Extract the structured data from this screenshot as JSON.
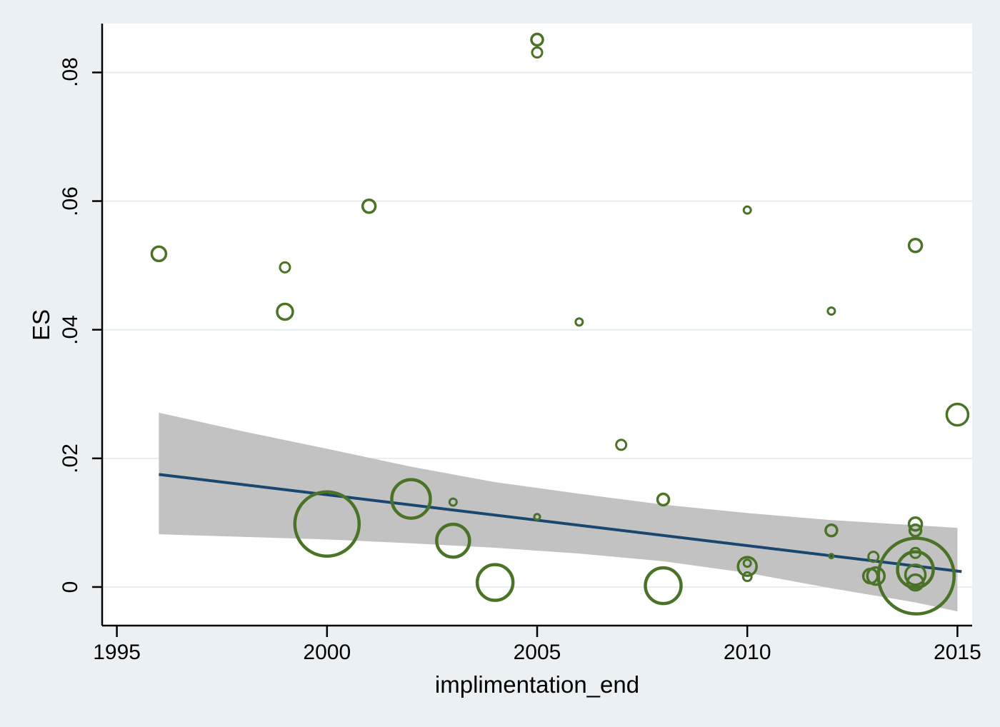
{
  "chart_data": {
    "type": "scatter",
    "subtype": "bubble-with-fit",
    "title": "",
    "xlabel": "implimentation_end",
    "ylabel": "ES",
    "x_range": [
      1994.65,
      2015.35
    ],
    "y_range": [
      -0.006,
      0.0876
    ],
    "x_ticks": [
      1995,
      2000,
      2005,
      2010,
      2015
    ],
    "x_tick_labels": [
      "1995",
      "2000",
      "2005",
      "2010",
      "2015"
    ],
    "y_ticks": [
      0,
      0.02,
      0.04,
      0.06,
      0.08
    ],
    "y_tick_labels": [
      "0",
      ".02",
      ".04",
      ".06",
      ".08"
    ],
    "grid": true,
    "legend": false,
    "bubbles": [
      {
        "x": 1996,
        "y": 0.0518,
        "r": 10
      },
      {
        "x": 1999,
        "y": 0.0497,
        "r": 7
      },
      {
        "x": 1999,
        "y": 0.0428,
        "r": 11
      },
      {
        "x": 2000,
        "y": 0.0098,
        "r": 45
      },
      {
        "x": 2001,
        "y": 0.0592,
        "r": 9
      },
      {
        "x": 2002,
        "y": 0.0137,
        "r": 27
      },
      {
        "x": 2003,
        "y": 0.0132,
        "r": 5
      },
      {
        "x": 2003,
        "y": 0.0072,
        "r": 23
      },
      {
        "x": 2004,
        "y": 0.0007,
        "r": 25
      },
      {
        "x": 2005,
        "y": 0.0851,
        "r": 8
      },
      {
        "x": 2005,
        "y": 0.0831,
        "r": 7
      },
      {
        "x": 2005,
        "y": 0.0109,
        "r": 4
      },
      {
        "x": 2006,
        "y": 0.0412,
        "r": 5
      },
      {
        "x": 2007,
        "y": 0.0221,
        "r": 7
      },
      {
        "x": 2008,
        "y": 0.0136,
        "r": 8
      },
      {
        "x": 2008,
        "y": 0.0002,
        "r": 25
      },
      {
        "x": 2010,
        "y": 0.0586,
        "r": 5
      },
      {
        "x": 2010,
        "y": 0.0037,
        "r": 5
      },
      {
        "x": 2010,
        "y": 0.0032,
        "r": 13
      },
      {
        "x": 2010,
        "y": 0.0016,
        "r": 6
      },
      {
        "x": 2012,
        "y": 0.0429,
        "r": 5
      },
      {
        "x": 2012,
        "y": 0.0088,
        "r": 8
      },
      {
        "x": 2012,
        "y": 0.0048,
        "r": 3
      },
      {
        "x": 2013,
        "y": 0.0047,
        "r": 7
      },
      {
        "x": 2012.93,
        "y": 0.0017,
        "r": 10
      },
      {
        "x": 2013.06,
        "y": 0.0017,
        "r": 12
      },
      {
        "x": 2014,
        "y": 0.0531,
        "r": 9
      },
      {
        "x": 2014,
        "y": 0.0098,
        "r": 9
      },
      {
        "x": 2014,
        "y": 0.0088,
        "r": 8
      },
      {
        "x": 2014,
        "y": 0.0053,
        "r": 7
      },
      {
        "x": 2014,
        "y": 0.0027,
        "r": 25
      },
      {
        "x": 2014,
        "y": 0.0019,
        "r": 14
      },
      {
        "x": 2014,
        "y": 0.0007,
        "r": 11
      },
      {
        "x": 2014.02,
        "y": 0.0017,
        "r": 53
      },
      {
        "x": 2015,
        "y": 0.0268,
        "r": 15
      }
    ],
    "fit_line": {
      "x1": 1996,
      "y1": 0.0175,
      "x2": 2015.1,
      "y2": 0.0024
    },
    "ci_band": [
      {
        "x": 1996,
        "upper": 0.0271,
        "lower": 0.0082
      },
      {
        "x": 1998,
        "upper": 0.0242,
        "lower": 0.0078
      },
      {
        "x": 2000,
        "upper": 0.0215,
        "lower": 0.0074
      },
      {
        "x": 2002,
        "upper": 0.0187,
        "lower": 0.0068
      },
      {
        "x": 2004,
        "upper": 0.0163,
        "lower": 0.0061
      },
      {
        "x": 2006,
        "upper": 0.0145,
        "lower": 0.0052
      },
      {
        "x": 2008,
        "upper": 0.0128,
        "lower": 0.004
      },
      {
        "x": 2010,
        "upper": 0.0115,
        "lower": 0.0022
      },
      {
        "x": 2012,
        "upper": 0.0104,
        "lower": -0.0002
      },
      {
        "x": 2014,
        "upper": 0.0096,
        "lower": -0.0024
      },
      {
        "x": 2015,
        "upper": 0.0092,
        "lower": -0.0038
      }
    ],
    "colors": {
      "bubble": "#4a7328",
      "line": "#1a476f",
      "band": "#c2c2c2",
      "plot_bg": "#ffffff",
      "canvas_bg": "#eaf0f3",
      "grid": "#e4eef0",
      "axis": "#000000"
    }
  }
}
